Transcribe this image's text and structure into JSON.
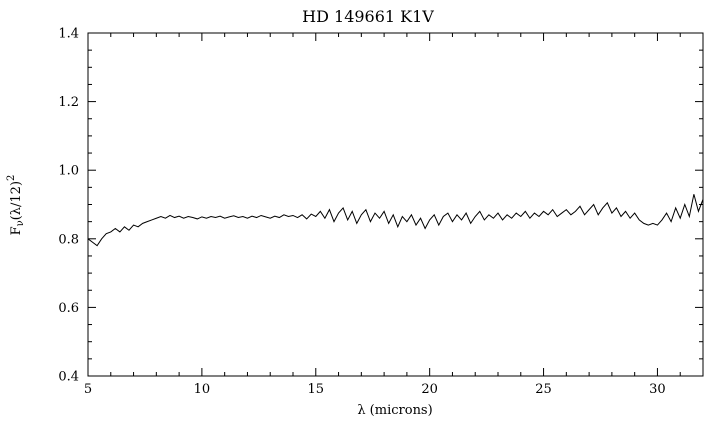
{
  "chart_data": {
    "type": "line",
    "title": "HD 149661 K1V",
    "xlabel": "λ (microns)",
    "ylabel": "Fν(λ/12)²",
    "ylabel_parts": [
      {
        "t": "F",
        "style": "normal"
      },
      {
        "t": "ν",
        "style": "sub"
      },
      {
        "t": "(λ/12)",
        "style": "normal"
      },
      {
        "t": "2",
        "style": "sup"
      }
    ],
    "xlim": [
      5,
      32
    ],
    "ylim": [
      0.4,
      1.4
    ],
    "x_ticks": [
      5,
      10,
      15,
      20,
      25,
      30
    ],
    "x_tick_labels": [
      "5",
      "10",
      "15",
      "20",
      "25",
      "30"
    ],
    "x_minor_step": 1,
    "y_ticks": [
      0.4,
      0.6,
      0.8,
      1.0,
      1.2,
      1.4
    ],
    "y_tick_labels": [
      "0.4",
      "0.6",
      "0.8",
      "1.0",
      "1.2",
      "1.4"
    ],
    "y_minor_step": 0.05,
    "grid": false,
    "legend": "none",
    "line_color": "#000000",
    "background": "#ffffff",
    "x_start": 5.0,
    "x_step": 0.2,
    "y": [
      0.8,
      0.79,
      0.78,
      0.8,
      0.815,
      0.82,
      0.83,
      0.82,
      0.835,
      0.825,
      0.84,
      0.835,
      0.845,
      0.85,
      0.855,
      0.86,
      0.865,
      0.86,
      0.868,
      0.862,
      0.866,
      0.86,
      0.865,
      0.862,
      0.858,
      0.864,
      0.86,
      0.865,
      0.862,
      0.866,
      0.86,
      0.864,
      0.867,
      0.862,
      0.865,
      0.86,
      0.866,
      0.862,
      0.868,
      0.864,
      0.86,
      0.866,
      0.862,
      0.87,
      0.865,
      0.868,
      0.862,
      0.87,
      0.858,
      0.872,
      0.865,
      0.88,
      0.86,
      0.885,
      0.85,
      0.875,
      0.89,
      0.855,
      0.88,
      0.845,
      0.87,
      0.885,
      0.85,
      0.875,
      0.86,
      0.88,
      0.845,
      0.87,
      0.835,
      0.865,
      0.85,
      0.87,
      0.84,
      0.86,
      0.83,
      0.855,
      0.87,
      0.84,
      0.865,
      0.875,
      0.85,
      0.87,
      0.855,
      0.875,
      0.845,
      0.865,
      0.88,
      0.855,
      0.87,
      0.86,
      0.875,
      0.855,
      0.87,
      0.86,
      0.875,
      0.865,
      0.88,
      0.86,
      0.875,
      0.865,
      0.88,
      0.87,
      0.885,
      0.865,
      0.875,
      0.885,
      0.87,
      0.88,
      0.895,
      0.87,
      0.885,
      0.9,
      0.87,
      0.89,
      0.905,
      0.875,
      0.89,
      0.865,
      0.88,
      0.86,
      0.875,
      0.855,
      0.845,
      0.84,
      0.845,
      0.84,
      0.855,
      0.875,
      0.85,
      0.89,
      0.86,
      0.9,
      0.865,
      0.93,
      0.88,
      0.915
    ]
  }
}
